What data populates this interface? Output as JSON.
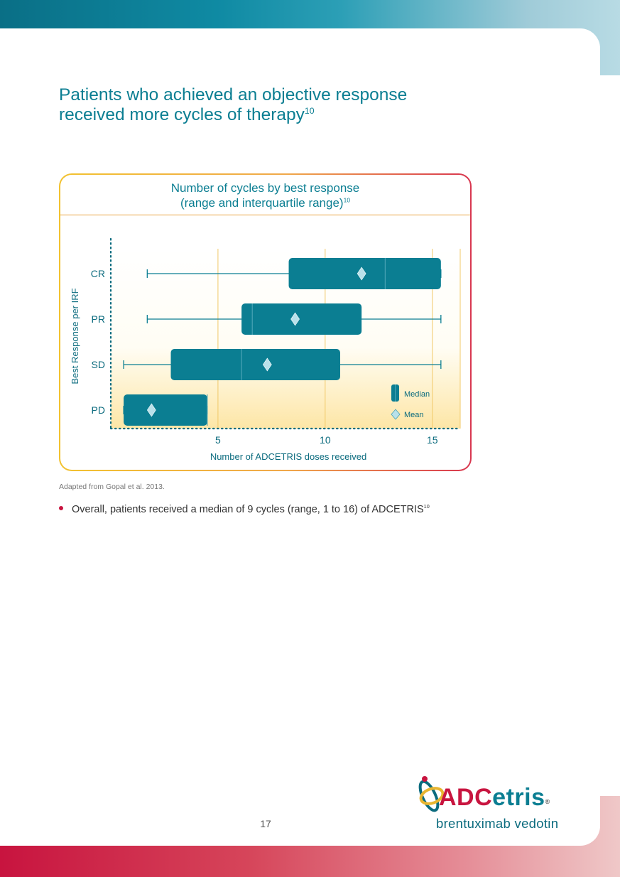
{
  "heading": {
    "line1": "Patients who achieved an objective response",
    "line2": "received more cycles of therapy",
    "ref": "10"
  },
  "chart_panel": {
    "title_line1": "Number of cycles by best response",
    "title_line2": "(range and interquartile range)",
    "title_ref": "10"
  },
  "chart_data": {
    "type": "box",
    "xlabel": "Number of ADCETRIS doses received",
    "ylabel": "Best Response per IRF",
    "xlim": [
      0,
      16.3
    ],
    "xticks": [
      5,
      10,
      15
    ],
    "grid": "vertical",
    "legend": {
      "position": "bottom-right",
      "median_label": "Median",
      "mean_label": "Mean"
    },
    "categories": [
      "CR",
      "PR",
      "SD",
      "PD"
    ],
    "boxes": [
      {
        "category": "CR",
        "min": 1.7,
        "q1": 8.3,
        "median": 12.8,
        "q3": 15.4,
        "max": 15.4,
        "mean": 11.7
      },
      {
        "category": "PR",
        "min": 1.7,
        "q1": 6.1,
        "median": 6.6,
        "q3": 11.7,
        "max": 15.4,
        "mean": 8.6
      },
      {
        "category": "SD",
        "min": 0.6,
        "q1": 2.8,
        "median": 6.1,
        "q3": 10.7,
        "max": 15.4,
        "mean": 7.3
      },
      {
        "category": "PD",
        "min": 0.6,
        "q1": 0.6,
        "median": 4.5,
        "q3": 4.5,
        "max": 4.5,
        "mean": 1.9
      }
    ],
    "colors": {
      "box": "#0b7e92",
      "whisker": "#0b7e92",
      "mean": "#b9e1ea",
      "axis": "#0b6b7e",
      "grid": "#f1c969"
    }
  },
  "source_note": "Adapted from Gopal et al. 2013.",
  "bullet": {
    "text": "Overall, patients received a median of 9 cycles (range, 1 to 16) of ADCETRIS",
    "ref": "10"
  },
  "page_number": "17",
  "brand": {
    "name_ad": "ADC",
    "name_rest": "etris",
    "reg": "®",
    "generic": "brentuximab vedotin",
    "logo_icon": "adcetris-logo-icon"
  }
}
